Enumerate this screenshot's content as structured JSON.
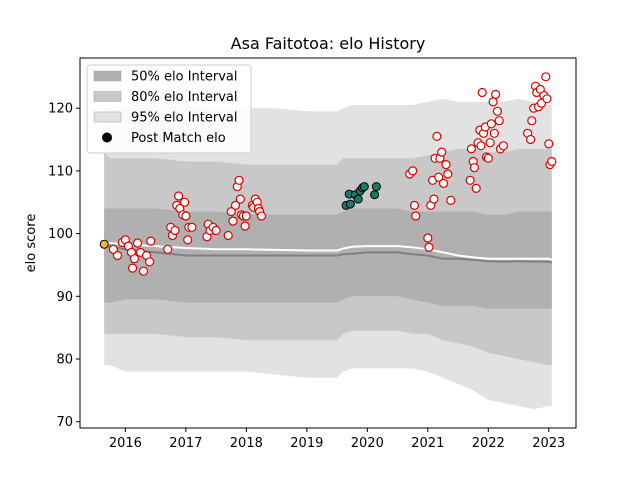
{
  "chart_data": {
    "type": "scatter",
    "title": "Asa Faitotoa: elo History",
    "xlabel": "",
    "ylabel": "elo score",
    "xlim": [
      2015.25,
      2023.45
    ],
    "ylim": [
      69,
      128
    ],
    "xticks": [
      2016,
      2017,
      2018,
      2019,
      2020,
      2021,
      2022,
      2023
    ],
    "yticks": [
      70,
      80,
      90,
      100,
      110,
      120
    ],
    "legend": {
      "placement": "top-left",
      "entries": [
        {
          "label": "50% elo Interval",
          "color": "#b0b0b0"
        },
        {
          "label": "80% elo Interval",
          "color": "#c8c8c8"
        },
        {
          "label": "95% elo Interval",
          "color": "#e2e2e2"
        },
        {
          "label": "Post Match elo",
          "color": "#000000"
        }
      ]
    },
    "colors": {
      "band95": "#e2e2e2",
      "band80": "#c8c8c8",
      "band50": "#b0b0b0",
      "median_line": "#808080",
      "mean_line": "#ffffff",
      "marker_edge_red": "#dd0000",
      "marker_fill_white": "#ffffff",
      "marker_fill_teal": "#1a7a6a",
      "marker_fill_start": "#f5b82e"
    },
    "bands": {
      "x": [
        2015.65,
        2015.75,
        2016.0,
        2016.5,
        2017.0,
        2017.5,
        2018.0,
        2018.5,
        2019.0,
        2019.5,
        2019.6,
        2019.75,
        2020.0,
        2020.5,
        2020.75,
        2021.0,
        2021.25,
        2021.5,
        2021.75,
        2022.0,
        2022.25,
        2022.5,
        2022.75,
        2023.0,
        2023.05
      ],
      "p95_upper": [
        120,
        120,
        120.5,
        120.5,
        120.5,
        120,
        120,
        120,
        119.5,
        119.5,
        120,
        120.5,
        120.5,
        120.5,
        120.5,
        121,
        121.5,
        121,
        121,
        121,
        121,
        121.5,
        121,
        120.5,
        120.5
      ],
      "p95_lower": [
        79,
        79,
        78,
        78,
        78,
        78,
        78,
        77.5,
        77,
        77,
        78,
        78.5,
        78.5,
        78.5,
        78.5,
        78,
        77,
        76,
        75,
        73.5,
        73,
        72.5,
        72,
        72.5,
        72.5
      ],
      "p80_upper": [
        113,
        112,
        112,
        112,
        111.5,
        111.5,
        111,
        111,
        111,
        111,
        112,
        112,
        112,
        112,
        112,
        112.5,
        113,
        113.5,
        113.5,
        113,
        113,
        113.5,
        113.5,
        113.5,
        113.5
      ],
      "p80_lower": [
        84,
        84,
        84,
        84,
        83.5,
        83.5,
        83,
        83,
        83,
        83,
        84,
        84.5,
        84.5,
        84.5,
        84,
        84,
        83,
        82.5,
        82,
        81,
        80.5,
        80,
        79.5,
        79,
        79
      ],
      "p50_upper": [
        104,
        104,
        104,
        104,
        103.5,
        103.5,
        103,
        103,
        103,
        103,
        103.5,
        104,
        104,
        104,
        103.5,
        103.5,
        103.5,
        103.5,
        103.5,
        103,
        103,
        103.5,
        103.5,
        103.5,
        103.5
      ],
      "p50_lower": [
        89,
        89,
        89.5,
        89.5,
        89,
        89,
        89,
        89,
        89,
        89,
        89.5,
        90,
        90,
        90,
        89.5,
        89,
        88.5,
        88.5,
        88.5,
        88,
        88,
        88,
        88,
        88,
        88
      ],
      "median": [
        98,
        98,
        97.5,
        97,
        96.5,
        96.5,
        96.5,
        96.5,
        96.5,
        96.5,
        96.7,
        96.8,
        97,
        97,
        96.7,
        96.5,
        96,
        96,
        95.8,
        95.6,
        95.5,
        95.6,
        95.5,
        95.5,
        95.4
      ],
      "mean": [
        98.5,
        98.5,
        98.3,
        98,
        97.7,
        97.5,
        97.5,
        97.4,
        97.3,
        97.3,
        97.6,
        97.9,
        98,
        98,
        97.8,
        97.5,
        97,
        96.5,
        96.2,
        96,
        96,
        96,
        96,
        96,
        95.8
      ]
    },
    "series": [
      {
        "style": "start",
        "points": [
          [
            2015.65,
            98.3
          ]
        ]
      },
      {
        "style": "red",
        "points": [
          [
            2015.8,
            97.5
          ],
          [
            2015.87,
            96.5
          ],
          [
            2015.95,
            98.6
          ],
          [
            2016.0,
            99.0
          ],
          [
            2016.05,
            98.0
          ],
          [
            2016.1,
            97.0
          ],
          [
            2016.12,
            94.5
          ],
          [
            2016.15,
            96.0
          ],
          [
            2016.2,
            98.5
          ],
          [
            2016.25,
            97.0
          ],
          [
            2016.3,
            94.0
          ],
          [
            2016.35,
            96.5
          ],
          [
            2016.4,
            95.5
          ],
          [
            2016.42,
            98.8
          ],
          [
            2016.7,
            97.5
          ],
          [
            2016.75,
            101.0
          ],
          [
            2016.78,
            99.7
          ],
          [
            2016.82,
            100.5
          ],
          [
            2016.85,
            104.5
          ],
          [
            2016.88,
            106.0
          ],
          [
            2016.9,
            104.0
          ],
          [
            2016.95,
            103.0
          ],
          [
            2016.98,
            105.0
          ],
          [
            2017.0,
            102.8
          ],
          [
            2017.03,
            99.0
          ],
          [
            2017.05,
            101.0
          ],
          [
            2017.1,
            101.0
          ],
          [
            2017.35,
            99.5
          ],
          [
            2017.37,
            101.5
          ],
          [
            2017.4,
            100.5
          ],
          [
            2017.45,
            101.0
          ],
          [
            2017.5,
            100.5
          ],
          [
            2017.7,
            99.7
          ],
          [
            2017.75,
            103.5
          ],
          [
            2017.78,
            102.0
          ],
          [
            2017.82,
            104.5
          ],
          [
            2017.85,
            107.5
          ],
          [
            2017.88,
            108.5
          ],
          [
            2017.9,
            105.5
          ],
          [
            2017.92,
            103.0
          ],
          [
            2017.95,
            102.8
          ],
          [
            2017.98,
            101.2
          ],
          [
            2018.0,
            102.8
          ],
          [
            2018.1,
            104.5
          ],
          [
            2018.12,
            104.2
          ],
          [
            2018.15,
            105.5
          ],
          [
            2018.18,
            105.0
          ],
          [
            2018.2,
            104.0
          ],
          [
            2018.22,
            103.5
          ],
          [
            2018.25,
            102.8
          ],
          [
            2020.7,
            109.5
          ],
          [
            2020.75,
            110.0
          ],
          [
            2020.78,
            104.5
          ],
          [
            2020.8,
            102.8
          ],
          [
            2021.0,
            99.3
          ],
          [
            2021.02,
            97.8
          ],
          [
            2021.05,
            104.5
          ],
          [
            2021.08,
            108.5
          ],
          [
            2021.1,
            105.5
          ],
          [
            2021.12,
            112.0
          ],
          [
            2021.15,
            115.5
          ],
          [
            2021.18,
            109.0
          ],
          [
            2021.2,
            112.0
          ],
          [
            2021.23,
            113.0
          ],
          [
            2021.26,
            108.0
          ],
          [
            2021.3,
            111.0
          ],
          [
            2021.33,
            109.5
          ],
          [
            2021.38,
            105.3
          ],
          [
            2021.7,
            108.5
          ],
          [
            2021.72,
            113.5
          ],
          [
            2021.75,
            111.5
          ],
          [
            2021.77,
            110.5
          ],
          [
            2021.8,
            107.2
          ],
          [
            2021.83,
            114.5
          ],
          [
            2021.86,
            116.5
          ],
          [
            2021.88,
            114.0
          ],
          [
            2021.9,
            122.5
          ],
          [
            2021.92,
            116.0
          ],
          [
            2021.95,
            117.0
          ],
          [
            2021.97,
            112.2
          ],
          [
            2022.0,
            112.0
          ],
          [
            2022.03,
            114.5
          ],
          [
            2022.05,
            117.5
          ],
          [
            2022.08,
            121.0
          ],
          [
            2022.1,
            116.0
          ],
          [
            2022.12,
            122.2
          ],
          [
            2022.15,
            119.5
          ],
          [
            2022.18,
            118.0
          ],
          [
            2022.2,
            113.5
          ],
          [
            2022.25,
            114.0
          ],
          [
            2022.65,
            116.0
          ],
          [
            2022.7,
            115.0
          ],
          [
            2022.72,
            118.0
          ],
          [
            2022.75,
            120.0
          ],
          [
            2022.78,
            123.5
          ],
          [
            2022.8,
            122.5
          ],
          [
            2022.83,
            120.2
          ],
          [
            2022.86,
            123.0
          ],
          [
            2022.88,
            120.8
          ],
          [
            2022.92,
            122.0
          ],
          [
            2022.95,
            125.0
          ],
          [
            2022.97,
            121.5
          ],
          [
            2023.0,
            114.3
          ],
          [
            2023.02,
            111.0
          ],
          [
            2023.05,
            111.5
          ]
        ]
      },
      {
        "style": "teal",
        "points": [
          [
            2019.65,
            104.5
          ],
          [
            2019.7,
            106.3
          ],
          [
            2019.72,
            104.7
          ],
          [
            2019.8,
            106.2
          ],
          [
            2019.85,
            105.5
          ],
          [
            2019.88,
            106.8
          ],
          [
            2019.92,
            107.3
          ],
          [
            2019.95,
            107.5
          ],
          [
            2020.12,
            106.2
          ],
          [
            2020.15,
            107.5
          ]
        ]
      }
    ]
  }
}
